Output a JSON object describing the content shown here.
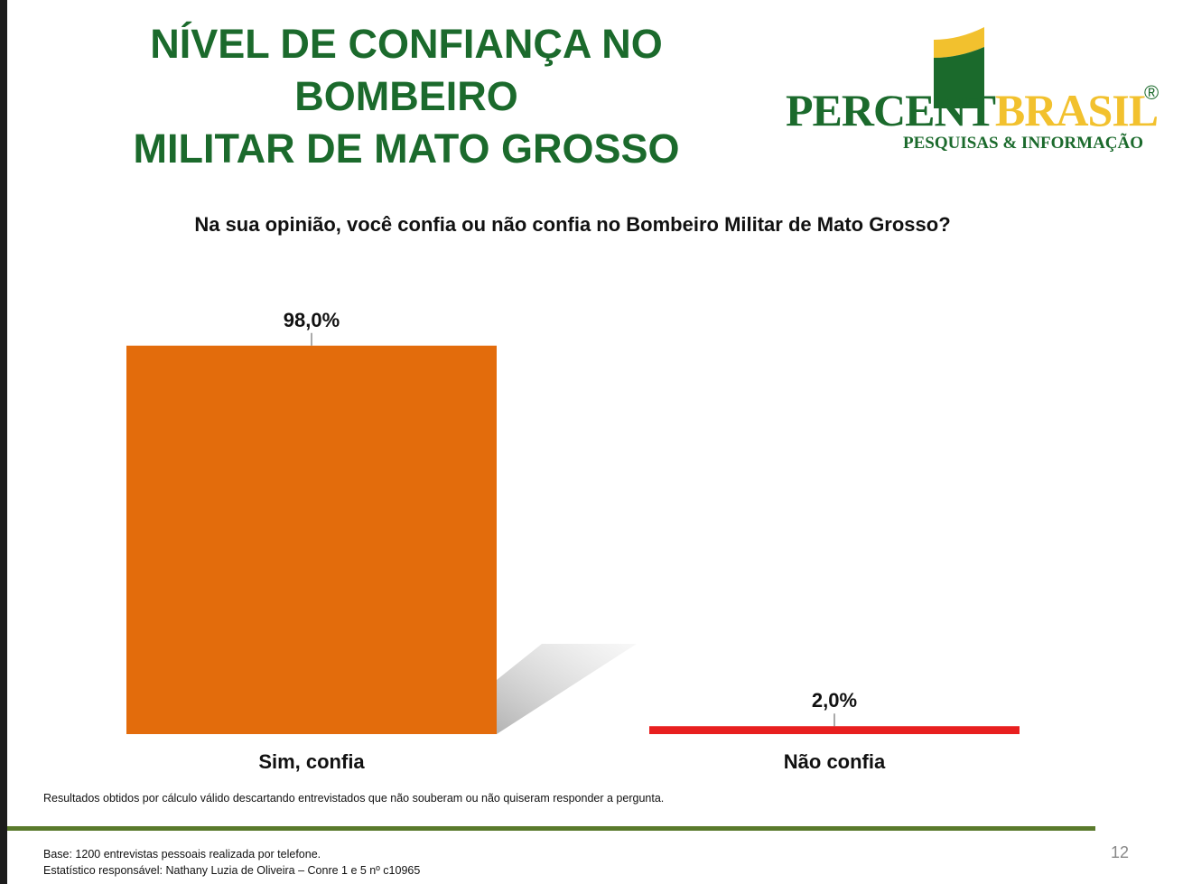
{
  "header": {
    "title_line1": "NÍVEL DE CONFIANÇA NO BOMBEIRO",
    "title_line2": "MILITAR DE MATO GROSSO"
  },
  "logo": {
    "name_part1": "PERCENT",
    "name_part2": "BRASIL",
    "registered_mark": "®",
    "tagline": "PESQUISAS & INFORMAÇÃO"
  },
  "chart_data": {
    "type": "bar",
    "title": "Na sua opinião, você confia ou não confia no Bombeiro Militar de Mato Grosso?",
    "categories": [
      "Sim, confia",
      "Não confia"
    ],
    "values": [
      98.0,
      2.0
    ],
    "value_labels": [
      "98,0%",
      "2,0%"
    ],
    "colors": [
      "#e36c0c",
      "#e81f1f"
    ],
    "ylim": [
      0,
      100
    ],
    "grid": false,
    "legend": "none"
  },
  "footer": {
    "note": "Resultados obtidos por cálculo válido descartando entrevistados que não souberam ou não quiseram responder a pergunta.",
    "base": "Base: 1200 entrevistas pessoais realizada por telefone.",
    "statistician": "Estatístico responsável: Nathany Luzia de Oliveira – Conre 1 e 5 nº c10965",
    "page_number": "12"
  }
}
